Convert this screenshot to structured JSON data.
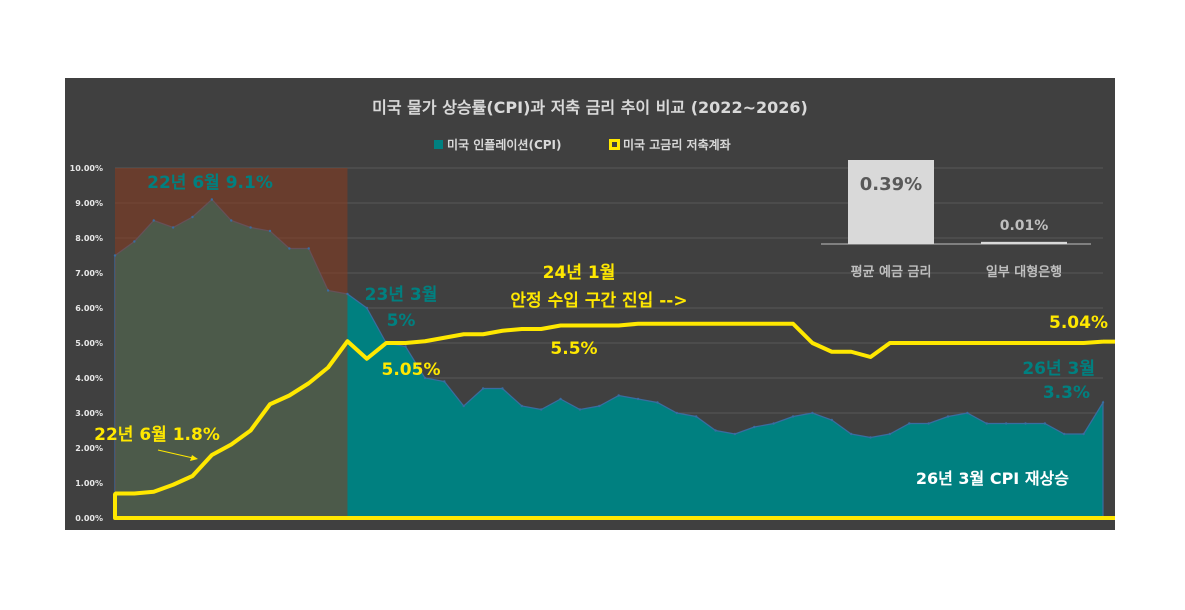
{
  "chart_data": {
    "type": "area+line",
    "title": "미국 물가 상승률(CPI)과 저축 금리 추이 비교 (2022~2026)",
    "xlabel": "",
    "ylabel": "",
    "ylim": [
      0,
      10
    ],
    "y_ticks": [
      "0.00%",
      "1.00%",
      "2.00%",
      "3.00%",
      "4.00%",
      "5.00%",
      "6.00%",
      "7.00%",
      "8.00%",
      "9.00%",
      "10.00%"
    ],
    "grid": true,
    "legend": {
      "position": "top",
      "entries": [
        "미국 인플레이션(CPI)",
        "미국 고금리 저축계좌"
      ]
    },
    "period_count": 52,
    "series": [
      {
        "name": "미국 인플레이션(CPI)",
        "kind": "area",
        "color": "#008080",
        "values": [
          7.5,
          7.9,
          8.5,
          8.3,
          8.6,
          9.1,
          8.5,
          8.3,
          8.2,
          7.7,
          7.7,
          6.5,
          6.4,
          6.0,
          5.0,
          4.9,
          4.0,
          3.9,
          3.2,
          3.7,
          3.7,
          3.2,
          3.1,
          3.4,
          3.1,
          3.2,
          3.5,
          3.4,
          3.3,
          3.0,
          2.9,
          2.5,
          2.4,
          2.6,
          2.7,
          2.9,
          3.0,
          2.8,
          2.4,
          2.3,
          2.4,
          2.7,
          2.7,
          2.9,
          3.0,
          2.7,
          2.7,
          2.7,
          2.7,
          2.4,
          2.4,
          3.3
        ]
      },
      {
        "name": "미국 고금리 저축계좌",
        "kind": "line",
        "color": "#FFE800",
        "values": [
          0.7,
          0.7,
          0.75,
          0.95,
          1.2,
          1.8,
          2.1,
          2.5,
          3.25,
          3.5,
          3.85,
          4.3,
          5.05,
          4.55,
          5.0,
          5.0,
          5.05,
          5.15,
          5.25,
          5.25,
          5.35,
          5.4,
          5.4,
          5.5,
          5.5,
          5.5,
          5.5,
          5.55,
          5.55,
          5.55,
          5.55,
          5.55,
          5.55,
          5.55,
          5.55,
          5.55,
          5.0,
          4.75,
          4.75,
          4.6,
          5.0,
          5.0,
          5.0,
          5.0,
          5.0,
          5.0,
          5.0,
          5.0,
          5.0,
          5.0,
          5.0,
          5.04
        ]
      }
    ],
    "shaded_period": {
      "start_index": 0,
      "end_index": 12,
      "color": "#8B3A1E"
    },
    "annotations": [
      {
        "text": "22년 6월 9.1%",
        "color": "#008080"
      },
      {
        "text": "22년 6월 1.8%",
        "color": "#FFE800"
      },
      {
        "text": "23년 3월",
        "color": "#008080"
      },
      {
        "text": "5%",
        "color": "#008080"
      },
      {
        "text": "5.05%",
        "color": "#FFE800"
      },
      {
        "text": "24년 1월",
        "color": "#FFE800"
      },
      {
        "text": "안정 수입 구간 진입 -->",
        "color": "#FFE800"
      },
      {
        "text": "5.5%",
        "color": "#FFE800"
      },
      {
        "text": "5.04%",
        "color": "#FFE800"
      },
      {
        "text": "26년 3월",
        "color": "#008080"
      },
      {
        "text": "3.3%",
        "color": "#008080"
      },
      {
        "text": "26년 3월 CPI 재상승",
        "color": "#FFFFFF"
      }
    ],
    "inset": {
      "type": "bar",
      "categories": [
        "평균 예금 금리",
        "일부 대형은행"
      ],
      "values": [
        0.39,
        0.01
      ],
      "labels": [
        "0.39%",
        "0.01%"
      ],
      "color": "#D9D9D9"
    }
  }
}
